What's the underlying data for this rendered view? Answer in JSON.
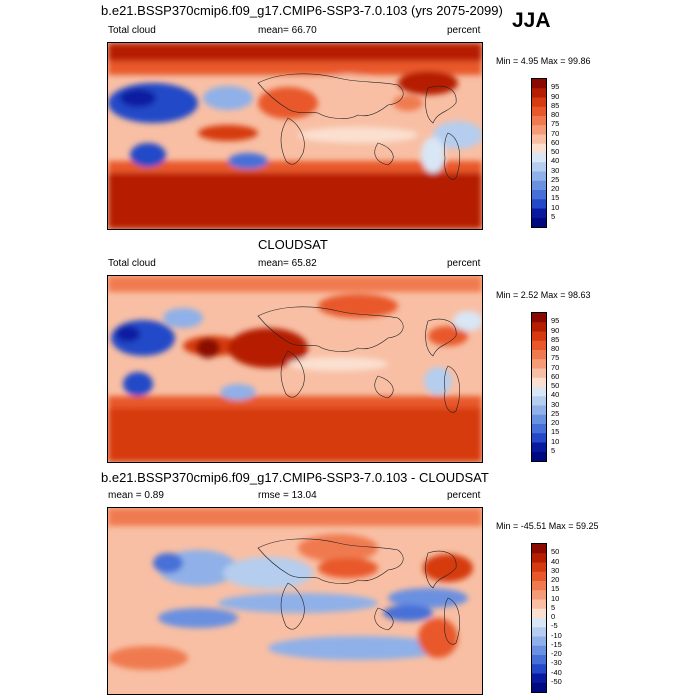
{
  "season": "JJA",
  "panels": [
    {
      "id": "model",
      "title": "b.e21.BSSP370cmip6.f09_g17.CMIP6-SSP3-7.0.103 (yrs 2075-2099)",
      "left_label": "Total cloud",
      "center_label": "mean=  66.70",
      "units": "percent",
      "minmax": "Min =   4.95 Max =  99.86"
    },
    {
      "id": "obs",
      "title": "CLOUDSAT",
      "left_label": "Total cloud",
      "center_label": "mean=  65.82",
      "units": "percent",
      "minmax": "Min =   2.52 Max =  98.63"
    },
    {
      "id": "diff",
      "title": "b.e21.BSSP370cmip6.f09_g17.CMIP6-SSP3-7.0.103 - CLOUDSAT",
      "left_label": "mean =   0.89",
      "center_label": "rmse =  13.04",
      "units": "percent",
      "minmax": "Min = -45.51 Max =  59.25"
    }
  ],
  "colorbars": {
    "abs_levels": [
      "95",
      "90",
      "85",
      "80",
      "75",
      "70",
      "60",
      "50",
      "40",
      "30",
      "25",
      "20",
      "15",
      "10",
      "5"
    ],
    "abs_colors": [
      "#8b0a00",
      "#b51e00",
      "#d63a10",
      "#e8582a",
      "#f07a50",
      "#f59b78",
      "#f8bfa4",
      "#fbe0d0",
      "#d8e6f5",
      "#b5cdee",
      "#8fb0e8",
      "#6a90e0",
      "#466fd8",
      "#2448c8",
      "#0a1aa0",
      "#000a80"
    ],
    "diff_levels": [
      "50",
      "40",
      "30",
      "20",
      "15",
      "10",
      "5",
      "0",
      "-5",
      "-10",
      "-15",
      "-20",
      "-30",
      "-40",
      "-50"
    ],
    "diff_colors": [
      "#8b0a00",
      "#b51e00",
      "#d63a10",
      "#e8582a",
      "#f07a50",
      "#f59b78",
      "#f8bfa4",
      "#fbe0d0",
      "#d8e6f5",
      "#b5cdee",
      "#8fb0e8",
      "#6a90e0",
      "#466fd8",
      "#2448c8",
      "#0a1aa0",
      "#000a80"
    ]
  },
  "chart_data": [
    {
      "type": "heatmap",
      "title": "b.e21.BSSP370cmip6.f09_g17.CMIP6-SSP3-7.0.103 (yrs 2075-2099)",
      "variable": "Total cloud",
      "units": "percent",
      "season": "JJA",
      "mean": 66.7,
      "min": 4.95,
      "max": 99.86,
      "levels": [
        5,
        10,
        15,
        20,
        25,
        30,
        40,
        50,
        60,
        70,
        75,
        80,
        85,
        90,
        95
      ],
      "colorscale": "blue-white-red"
    },
    {
      "type": "heatmap",
      "title": "CLOUDSAT",
      "variable": "Total cloud",
      "units": "percent",
      "season": "JJA",
      "mean": 65.82,
      "min": 2.52,
      "max": 98.63,
      "levels": [
        5,
        10,
        15,
        20,
        25,
        30,
        40,
        50,
        60,
        70,
        75,
        80,
        85,
        90,
        95
      ],
      "colorscale": "blue-white-red"
    },
    {
      "type": "heatmap",
      "title": "b.e21.BSSP370cmip6.f09_g17.CMIP6-SSP3-7.0.103 - CLOUDSAT",
      "units": "percent",
      "season": "JJA",
      "mean": 0.89,
      "rmse": 13.04,
      "min": -45.51,
      "max": 59.25,
      "levels": [
        -50,
        -40,
        -30,
        -20,
        -15,
        -10,
        -5,
        0,
        5,
        10,
        15,
        20,
        30,
        40,
        50
      ],
      "colorscale": "blue-white-red"
    }
  ]
}
